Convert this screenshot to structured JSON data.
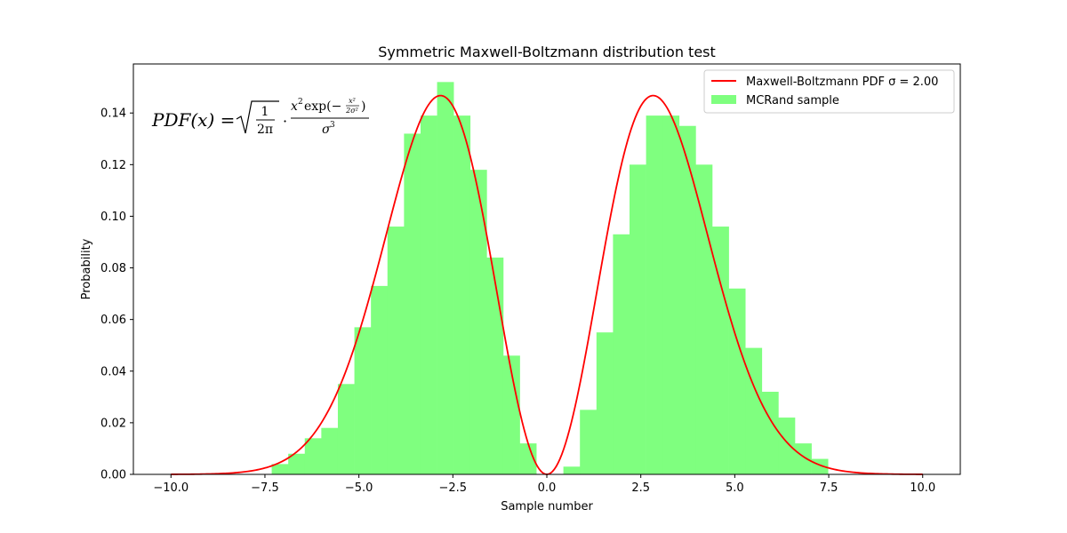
{
  "chart_data": {
    "type": "bar",
    "title": "Symmetric Maxwell-Boltzmann distribution test",
    "xlabel": "Sample number",
    "ylabel": "Probability",
    "xlim": [
      -11.0,
      11.0
    ],
    "ylim": [
      0.0,
      0.159
    ],
    "x_ticks": [
      -10.0,
      -7.5,
      -5.0,
      -2.5,
      0.0,
      2.5,
      5.0,
      7.5,
      10.0
    ],
    "x_tick_labels": [
      "−10.0",
      "−7.5",
      "−5.0",
      "−2.5",
      "0.0",
      "2.5",
      "5.0",
      "7.5",
      "10.0"
    ],
    "y_ticks": [
      0.0,
      0.02,
      0.04,
      0.06,
      0.08,
      0.1,
      0.12,
      0.14
    ],
    "y_tick_labels": [
      "0.00",
      "0.02",
      "0.04",
      "0.06",
      "0.08",
      "0.10",
      "0.12",
      "0.14"
    ],
    "grid": false,
    "legend_position": "top-right",
    "formula": {
      "lhs": "PDF(x) =",
      "sqrt_num": "1",
      "sqrt_den": "2π",
      "dot": "·",
      "num_x": "x",
      "num_x_exp": "2",
      "num_exp": "exp(−",
      "inner_num": "x²",
      "inner_den": "2σ²",
      "num_close": ")",
      "den_sigma": "σ",
      "den_exp": "3"
    },
    "series": [
      {
        "name": "Maxwell-Boltzmann PDF σ = 2.00",
        "type": "line",
        "color": "#ff0000",
        "sigma": 2.0,
        "x_range": [
          -10.0,
          10.0
        ]
      },
      {
        "name": "MCRand sample",
        "type": "histogram",
        "color": "#7fff7f",
        "bin_edges": [
          -7.32,
          -6.88,
          -6.44,
          -6.0,
          -5.56,
          -5.12,
          -4.68,
          -4.24,
          -3.8,
          -3.36,
          -2.92,
          -2.48,
          -2.04,
          -1.6,
          -1.16,
          -0.72,
          -0.28,
          0.44,
          0.88,
          1.32,
          1.76,
          2.2,
          2.64,
          3.08,
          3.52,
          3.96,
          4.4,
          4.84,
          5.28,
          5.72,
          6.16,
          6.6,
          7.04,
          7.48
        ],
        "values": [
          0.004,
          0.008,
          0.014,
          0.018,
          0.035,
          0.057,
          0.073,
          0.096,
          0.132,
          0.139,
          0.152,
          0.139,
          0.118,
          0.084,
          0.046,
          0.012,
          0.003,
          0.003,
          0.025,
          0.055,
          0.093,
          0.12,
          0.139,
          0.139,
          0.135,
          0.12,
          0.096,
          0.072,
          0.049,
          0.032,
          0.022,
          0.012,
          0.006,
          0.003
        ],
        "skip_bins": [
          16
        ]
      }
    ]
  }
}
